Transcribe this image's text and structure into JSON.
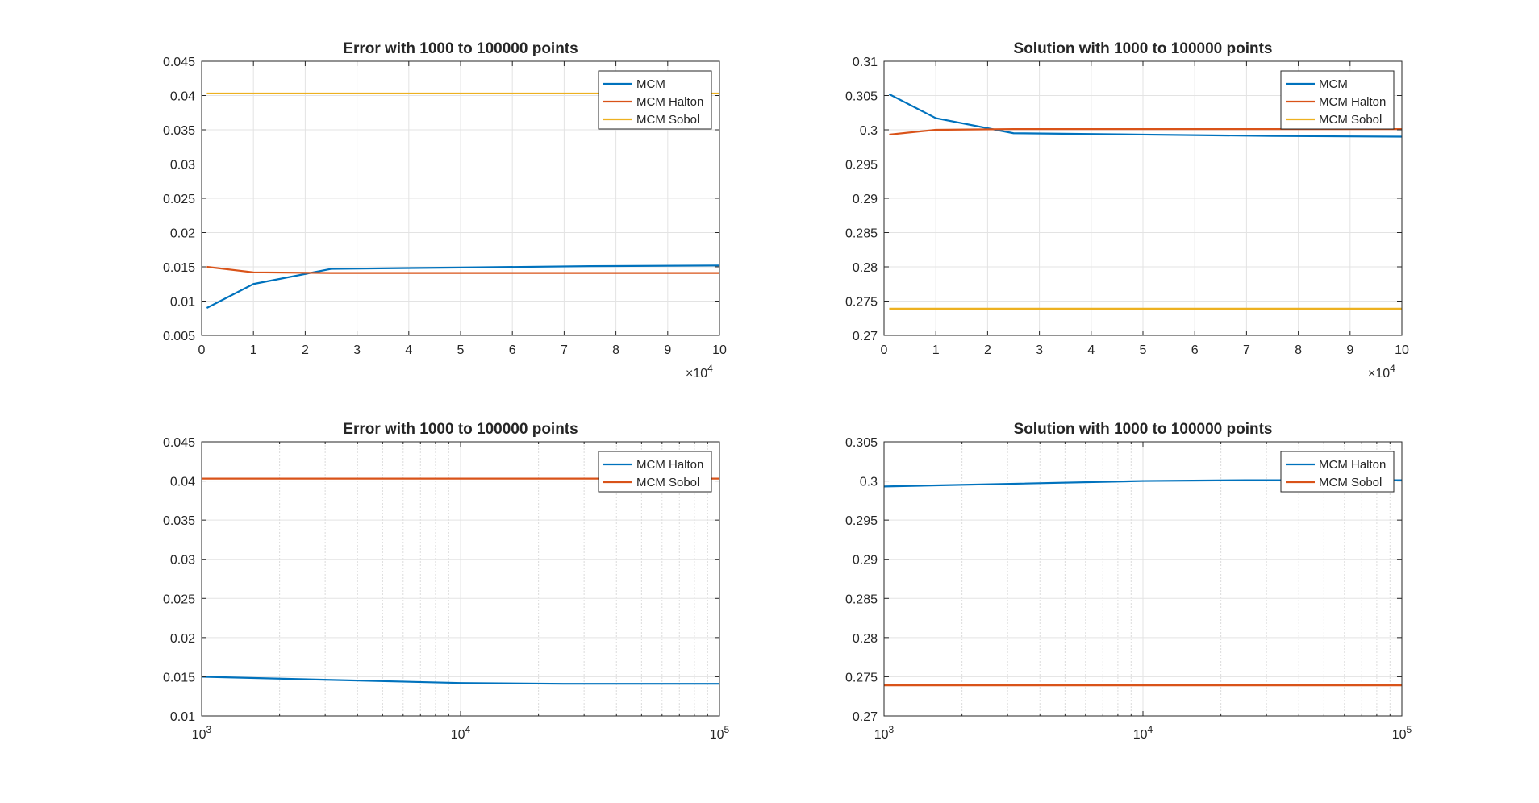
{
  "figure": {
    "background": "#ffffff"
  },
  "chart_data": [
    {
      "type": "line",
      "title": "Error with 1000 to 100000 points",
      "xlabel": "",
      "ylabel": "",
      "xscale": "linear",
      "xlim": [
        0,
        100000
      ],
      "ylim": [
        0.005,
        0.045
      ],
      "grid": true,
      "legend_position": "top-right",
      "xticks": [
        0,
        10000,
        20000,
        30000,
        40000,
        50000,
        60000,
        70000,
        80000,
        90000,
        100000
      ],
      "xtick_labels": [
        "0",
        "1",
        "2",
        "3",
        "4",
        "5",
        "6",
        "7",
        "8",
        "9",
        "10"
      ],
      "x_exponent": {
        "base": "×10",
        "exp": "4"
      },
      "yticks": [
        0.005,
        0.01,
        0.015,
        0.02,
        0.025,
        0.03,
        0.035,
        0.04,
        0.045
      ],
      "ytick_labels": [
        "0.005",
        "0.01",
        "0.015",
        "0.02",
        "0.025",
        "0.03",
        "0.035",
        "0.04",
        "0.045"
      ],
      "series": [
        {
          "name": "MCM",
          "color": "#0072BD",
          "x": [
            1000,
            10000,
            25000,
            50000,
            75000,
            100000
          ],
          "y": [
            0.009,
            0.0125,
            0.0147,
            0.0149,
            0.0151,
            0.0152
          ]
        },
        {
          "name": "MCM Halton",
          "color": "#D95319",
          "x": [
            1000,
            10000,
            25000,
            50000,
            75000,
            100000
          ],
          "y": [
            0.015,
            0.0142,
            0.0141,
            0.0141,
            0.0141,
            0.0141
          ]
        },
        {
          "name": "MCM Sobol",
          "color": "#EDB120",
          "x": [
            1000,
            10000,
            25000,
            50000,
            75000,
            100000
          ],
          "y": [
            0.0403,
            0.0403,
            0.0403,
            0.0403,
            0.0403,
            0.0403
          ]
        }
      ]
    },
    {
      "type": "line",
      "title": "Solution with 1000 to 100000 points",
      "xlabel": "",
      "ylabel": "",
      "xscale": "linear",
      "xlim": [
        0,
        100000
      ],
      "ylim": [
        0.27,
        0.31
      ],
      "grid": true,
      "legend_position": "top-right",
      "xticks": [
        0,
        10000,
        20000,
        30000,
        40000,
        50000,
        60000,
        70000,
        80000,
        90000,
        100000
      ],
      "xtick_labels": [
        "0",
        "1",
        "2",
        "3",
        "4",
        "5",
        "6",
        "7",
        "8",
        "9",
        "10"
      ],
      "x_exponent": {
        "base": "×10",
        "exp": "4"
      },
      "yticks": [
        0.27,
        0.275,
        0.28,
        0.285,
        0.29,
        0.295,
        0.3,
        0.305,
        0.31
      ],
      "ytick_labels": [
        "0.27",
        "0.275",
        "0.28",
        "0.285",
        "0.29",
        "0.295",
        "0.3",
        "0.305",
        "0.31"
      ],
      "series": [
        {
          "name": "MCM",
          "color": "#0072BD",
          "x": [
            1000,
            10000,
            25000,
            50000,
            75000,
            100000
          ],
          "y": [
            0.3052,
            0.3017,
            0.2995,
            0.2993,
            0.2991,
            0.299
          ]
        },
        {
          "name": "MCM Halton",
          "color": "#D95319",
          "x": [
            1000,
            10000,
            25000,
            50000,
            75000,
            100000
          ],
          "y": [
            0.2993,
            0.3,
            0.3001,
            0.3001,
            0.3001,
            0.3001
          ]
        },
        {
          "name": "MCM Sobol",
          "color": "#EDB120",
          "x": [
            1000,
            10000,
            25000,
            50000,
            75000,
            100000
          ],
          "y": [
            0.2739,
            0.2739,
            0.2739,
            0.2739,
            0.2739,
            0.2739
          ]
        }
      ]
    },
    {
      "type": "line",
      "title": "Error with 1000 to 100000 points",
      "xlabel": "",
      "ylabel": "",
      "xscale": "log",
      "xlim": [
        1000,
        100000
      ],
      "ylim": [
        0.01,
        0.045
      ],
      "grid": true,
      "legend_position": "top-right",
      "xticks": [
        1000,
        10000,
        100000
      ],
      "xtick_labels": [
        {
          "base": "10",
          "exp": "3"
        },
        {
          "base": "10",
          "exp": "4"
        },
        {
          "base": "10",
          "exp": "5"
        }
      ],
      "yticks": [
        0.01,
        0.015,
        0.02,
        0.025,
        0.03,
        0.035,
        0.04,
        0.045
      ],
      "ytick_labels": [
        "0.01",
        "0.015",
        "0.02",
        "0.025",
        "0.03",
        "0.035",
        "0.04",
        "0.045"
      ],
      "series": [
        {
          "name": "MCM Halton",
          "color": "#0072BD",
          "x": [
            1000,
            10000,
            25000,
            50000,
            75000,
            100000
          ],
          "y": [
            0.015,
            0.0142,
            0.0141,
            0.0141,
            0.0141,
            0.0141
          ]
        },
        {
          "name": "MCM Sobol",
          "color": "#D95319",
          "x": [
            1000,
            10000,
            25000,
            50000,
            75000,
            100000
          ],
          "y": [
            0.0403,
            0.0403,
            0.0403,
            0.0403,
            0.0403,
            0.0403
          ]
        }
      ]
    },
    {
      "type": "line",
      "title": "Solution with 1000 to 100000 points",
      "xlabel": "",
      "ylabel": "",
      "xscale": "log",
      "xlim": [
        1000,
        100000
      ],
      "ylim": [
        0.27,
        0.305
      ],
      "grid": true,
      "legend_position": "top-right",
      "xticks": [
        1000,
        10000,
        100000
      ],
      "xtick_labels": [
        {
          "base": "10",
          "exp": "3"
        },
        {
          "base": "10",
          "exp": "4"
        },
        {
          "base": "10",
          "exp": "5"
        }
      ],
      "yticks": [
        0.27,
        0.275,
        0.28,
        0.285,
        0.29,
        0.295,
        0.3,
        0.305
      ],
      "ytick_labels": [
        "0.27",
        "0.275",
        "0.28",
        "0.285",
        "0.29",
        "0.295",
        "0.3",
        "0.305"
      ],
      "series": [
        {
          "name": "MCM Halton",
          "color": "#0072BD",
          "x": [
            1000,
            10000,
            25000,
            50000,
            75000,
            100000
          ],
          "y": [
            0.2993,
            0.3,
            0.3001,
            0.3001,
            0.3001,
            0.3001
          ]
        },
        {
          "name": "MCM Sobol",
          "color": "#D95319",
          "x": [
            1000,
            10000,
            25000,
            50000,
            75000,
            100000
          ],
          "y": [
            0.2739,
            0.2739,
            0.2739,
            0.2739,
            0.2739,
            0.2739
          ]
        }
      ]
    }
  ]
}
